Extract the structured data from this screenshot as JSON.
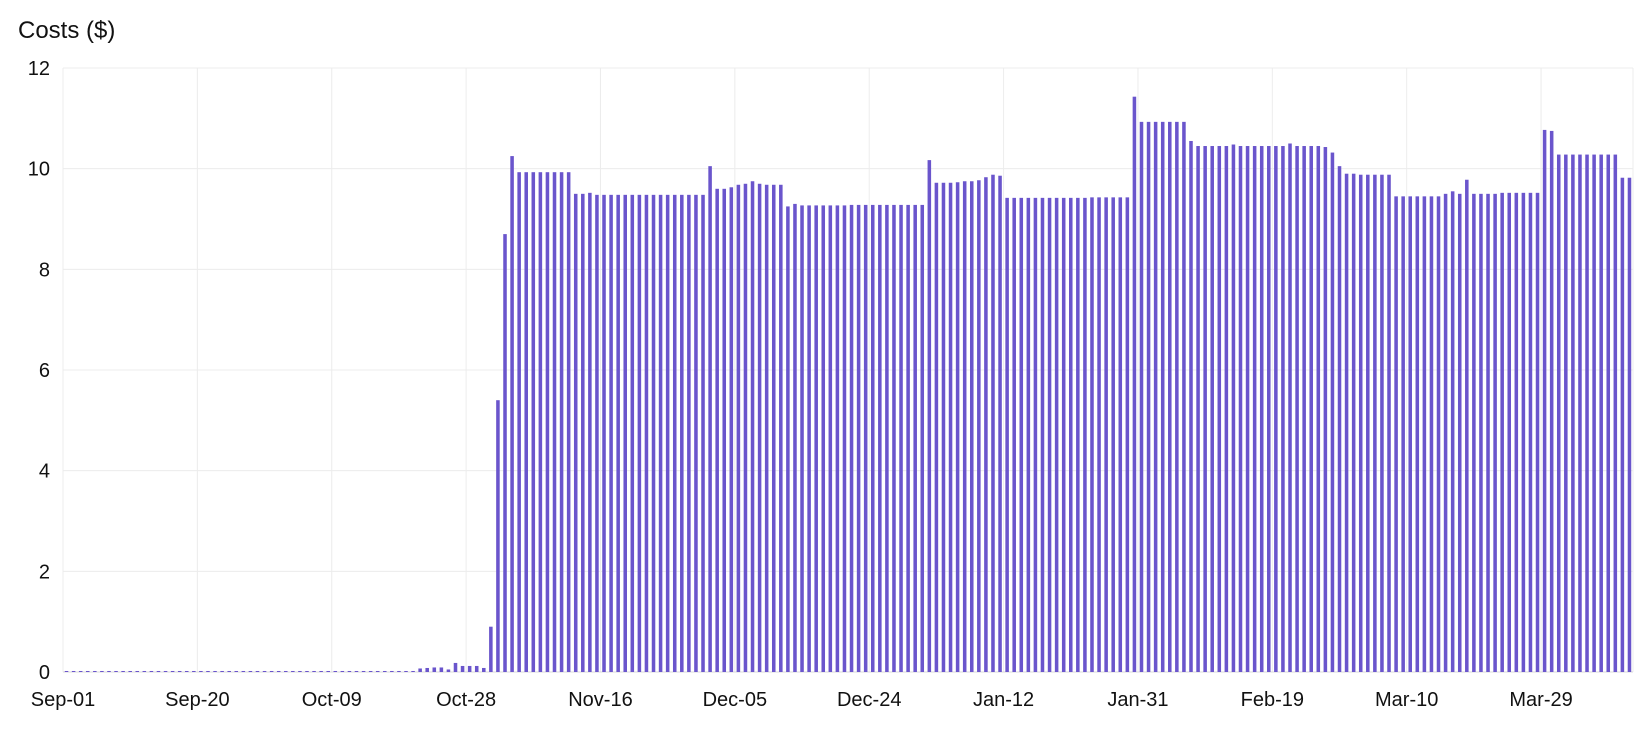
{
  "chart_data": {
    "type": "bar",
    "title": "",
    "ylabel": "Costs ($)",
    "xlabel": "",
    "ylim": [
      0,
      12
    ],
    "yticks": [
      0,
      2,
      4,
      6,
      8,
      10,
      12
    ],
    "xtick_labels": [
      "Sep-01",
      "Sep-20",
      "Oct-09",
      "Oct-28",
      "Nov-16",
      "Dec-05",
      "Dec-24",
      "Jan-12",
      "Jan-31",
      "Feb-19",
      "Mar-10",
      "Mar-29"
    ],
    "xtick_every_days": 19,
    "grid": true,
    "bar_color": "#6a55cc",
    "series": [
      {
        "name": "Costs ($)",
        "start_date": "Sep-01",
        "values": [
          0.02,
          0.02,
          0.02,
          0.02,
          0.02,
          0.02,
          0.02,
          0.02,
          0.02,
          0.02,
          0.02,
          0.02,
          0.02,
          0.02,
          0.02,
          0.02,
          0.02,
          0.02,
          0.02,
          0.02,
          0.02,
          0.02,
          0.02,
          0.02,
          0.02,
          0.02,
          0.02,
          0.02,
          0.02,
          0.02,
          0.02,
          0.02,
          0.02,
          0.02,
          0.02,
          0.02,
          0.02,
          0.02,
          0.02,
          0.02,
          0.02,
          0.02,
          0.02,
          0.02,
          0.02,
          0.02,
          0.02,
          0.02,
          0.02,
          0.02,
          0.07,
          0.08,
          0.09,
          0.09,
          0.05,
          0.18,
          0.12,
          0.12,
          0.12,
          0.08,
          0.9,
          5.4,
          8.7,
          10.25,
          9.93,
          9.93,
          9.93,
          9.93,
          9.93,
          9.93,
          9.93,
          9.93,
          9.5,
          9.5,
          9.52,
          9.48,
          9.48,
          9.48,
          9.48,
          9.48,
          9.48,
          9.48,
          9.48,
          9.48,
          9.48,
          9.48,
          9.48,
          9.48,
          9.48,
          9.48,
          9.48,
          10.05,
          9.6,
          9.6,
          9.63,
          9.68,
          9.7,
          9.75,
          9.7,
          9.68,
          9.68,
          9.68,
          9.25,
          9.3,
          9.27,
          9.27,
          9.27,
          9.27,
          9.27,
          9.27,
          9.27,
          9.28,
          9.28,
          9.28,
          9.28,
          9.28,
          9.28,
          9.28,
          9.28,
          9.28,
          9.28,
          9.28,
          10.17,
          9.72,
          9.72,
          9.72,
          9.73,
          9.75,
          9.75,
          9.77,
          9.83,
          9.88,
          9.86,
          9.42,
          9.42,
          9.42,
          9.42,
          9.42,
          9.42,
          9.42,
          9.42,
          9.42,
          9.42,
          9.42,
          9.42,
          9.43,
          9.43,
          9.43,
          9.43,
          9.43,
          9.43,
          11.43,
          10.93,
          10.93,
          10.93,
          10.93,
          10.93,
          10.93,
          10.93,
          10.55,
          10.45,
          10.45,
          10.45,
          10.45,
          10.45,
          10.48,
          10.45,
          10.45,
          10.45,
          10.45,
          10.45,
          10.45,
          10.45,
          10.5,
          10.45,
          10.45,
          10.45,
          10.45,
          10.43,
          10.32,
          10.05,
          9.9,
          9.9,
          9.88,
          9.88,
          9.88,
          9.88,
          9.88,
          9.45,
          9.45,
          9.45,
          9.45,
          9.45,
          9.45,
          9.45,
          9.5,
          9.55,
          9.5,
          9.78,
          9.5,
          9.5,
          9.5,
          9.5,
          9.52,
          9.52,
          9.52,
          9.52,
          9.52,
          9.52,
          10.77,
          10.75,
          10.28,
          10.28,
          10.28,
          10.28,
          10.28,
          10.28,
          10.28,
          10.28,
          10.28,
          9.82,
          9.82
        ]
      }
    ]
  }
}
